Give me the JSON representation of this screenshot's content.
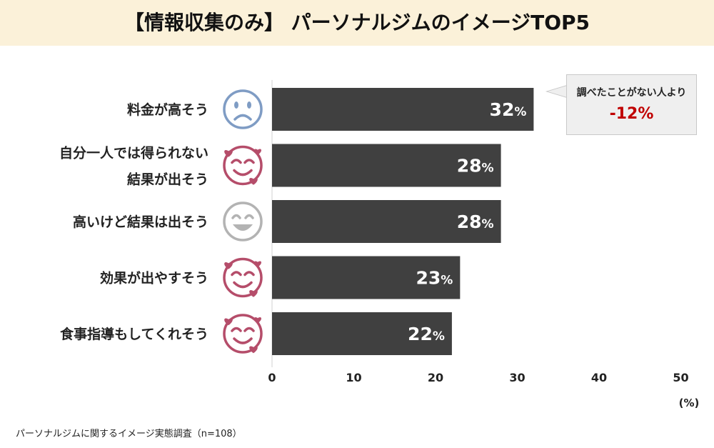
{
  "title": "【情報収集のみ】 パーソナルジムのイメージTOP5",
  "footnote": "パーソナルジムに関するイメージ実態調査（n=108）",
  "callout": {
    "text": "調べたことがない人より",
    "diff": "-12%"
  },
  "colors": {
    "bar": "#404040",
    "title_band": "#fbf1d9",
    "callout_diff": "#c00000",
    "face_sad": "#7f9cc4",
    "face_love": "#b54d6a",
    "face_smile": "#b3b3b3"
  },
  "chart_data": {
    "type": "bar",
    "orientation": "horizontal",
    "categories": [
      [
        "料金が高そう"
      ],
      [
        "自分一人では得られない",
        "結果が出そう"
      ],
      [
        "高いけど結果は出そう"
      ],
      [
        "効果が出やすそう"
      ],
      [
        "食事指導もしてくれそう"
      ]
    ],
    "values": [
      32,
      28,
      28,
      23,
      22
    ],
    "value_labels": [
      "32",
      "28",
      "28",
      "23",
      "22"
    ],
    "value_suffix": "%",
    "icons": [
      "sad-face-icon",
      "love-face-icon",
      "smile-face-icon",
      "love-face-icon",
      "love-face-icon"
    ],
    "xlim": [
      0,
      50
    ],
    "xticks": [
      "0",
      "10",
      "20",
      "30",
      "40",
      "50"
    ],
    "unit": "(%)",
    "grid": false,
    "legend": "none"
  }
}
